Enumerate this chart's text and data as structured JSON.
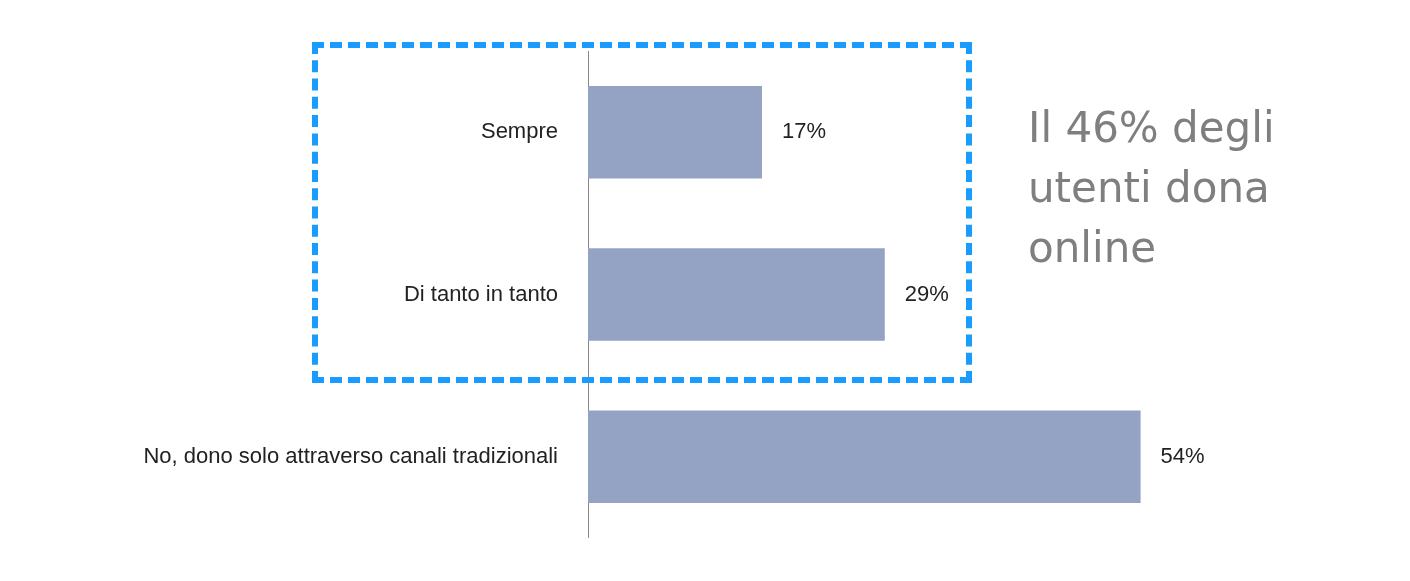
{
  "chart_data": {
    "type": "bar",
    "orientation": "horizontal",
    "categories": [
      "Sempre",
      "Di tanto in tanto",
      "No, dono solo attraverso canali tradizionali"
    ],
    "series": [
      {
        "color": "#94a3c4",
        "values": [
          17,
          29,
          54
        ],
        "value_labels": [
          "17%",
          "29%",
          "54%"
        ]
      }
    ],
    "annotations": [
      "Il 46% degli utenti dona online"
    ],
    "tick_labels": "y",
    "grid": false,
    "legend": false
  }
}
